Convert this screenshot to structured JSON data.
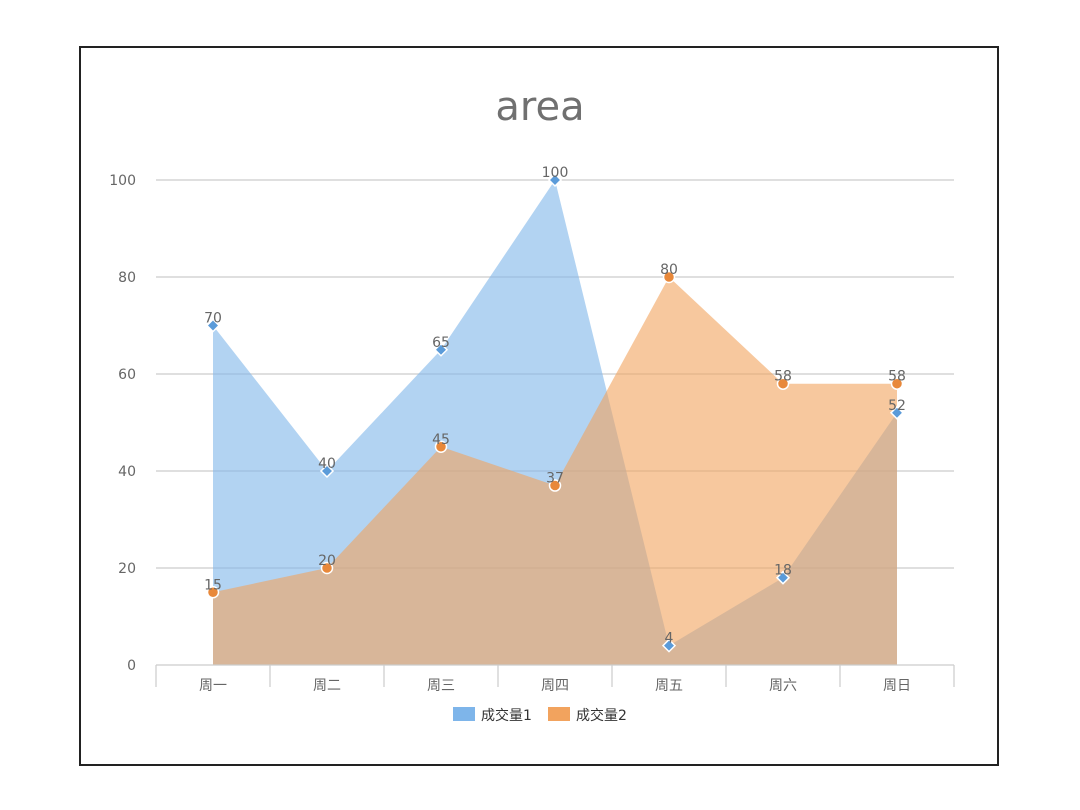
{
  "chart_data": {
    "type": "area",
    "title": "area",
    "categories": [
      "周一",
      "周二",
      "周三",
      "周四",
      "周五",
      "周六",
      "周日"
    ],
    "series": [
      {
        "name": "成交量1",
        "values": [
          70,
          40,
          65,
          100,
          4,
          18,
          52
        ],
        "color": "#7eb5ea",
        "marker": "diamond"
      },
      {
        "name": "成交量2",
        "values": [
          15,
          20,
          45,
          37,
          80,
          58,
          58
        ],
        "color": "#f2a35e",
        "marker": "circle"
      }
    ],
    "ylim": [
      0,
      100
    ],
    "yticks": [
      0,
      20,
      40,
      60,
      80,
      100
    ],
    "grid": true,
    "legend": "bottom-center"
  }
}
